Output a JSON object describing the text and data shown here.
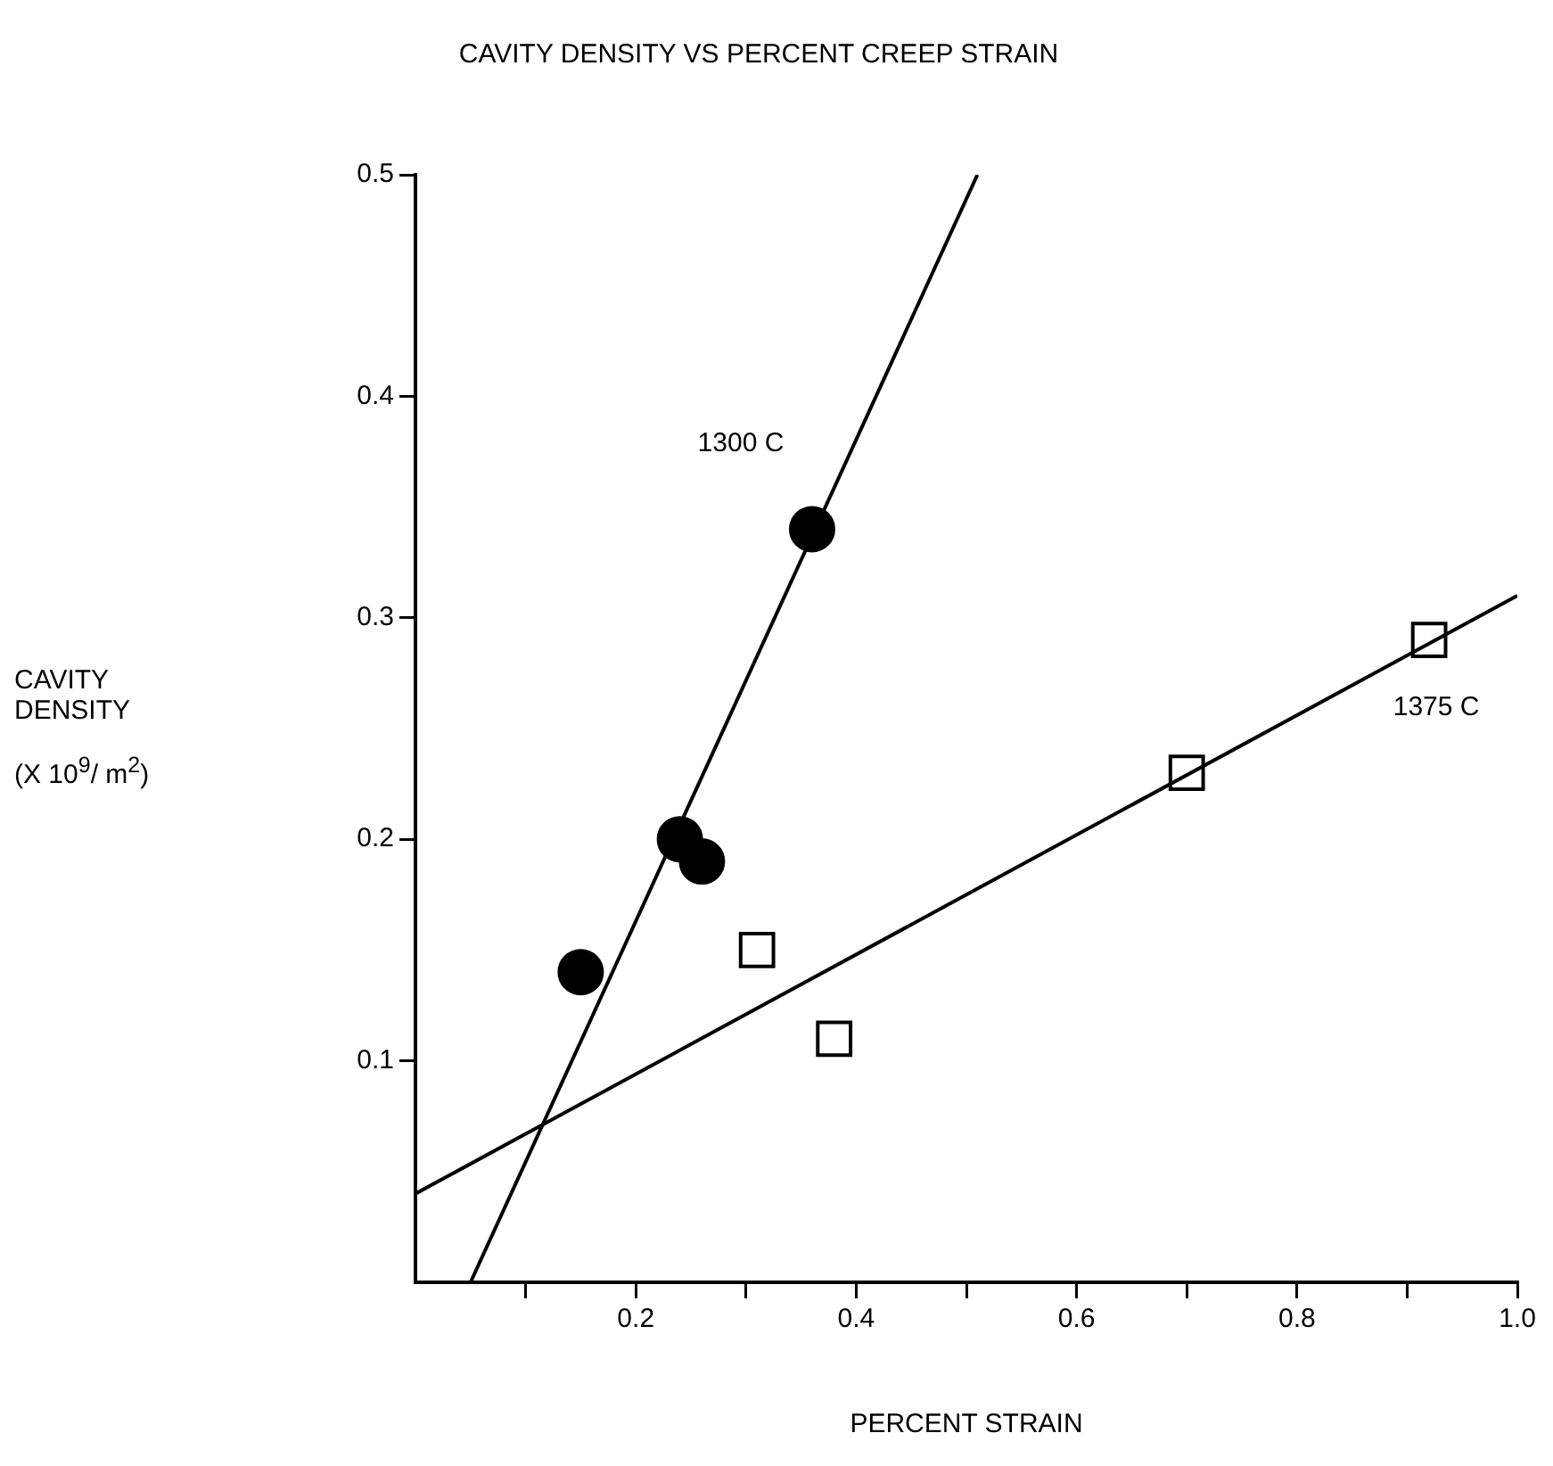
{
  "chart_data": {
    "type": "scatter",
    "title": "CAVITY DENSITY VS PERCENT CREEP STRAIN",
    "xlabel": "PERCENT STRAIN",
    "ylabel": "CAVITY\nDENSITY\n\n(X 10$^{9}$/ m$^{2}$)",
    "xlim": [
      0,
      1.0
    ],
    "ylim": [
      0,
      0.5
    ],
    "xticks": [
      {
        "value": 0.1,
        "label": null
      },
      0.2,
      {
        "value": 0.3,
        "label": null
      },
      0.4,
      {
        "value": 0.5,
        "label": null
      },
      0.6,
      {
        "value": 0.7,
        "label": null
      },
      0.8,
      {
        "value": 0.9,
        "label": null
      },
      {
        "value": 1.0,
        "label": "1.0"
      }
    ],
    "yticks": [
      0.1,
      0.2,
      0.3,
      0.4,
      0.5
    ],
    "series": [
      {
        "name": "1300 C",
        "marker": "circle",
        "color": "#000000",
        "x": [
          0.15,
          0.24,
          0.26,
          0.36
        ],
        "values": [
          0.14,
          0.2,
          0.19,
          0.34
        ]
      },
      {
        "type": "line",
        "marker": "none",
        "color": "#000000",
        "x": [
          0.05,
          0.51
        ],
        "values": [
          0,
          0.5
        ]
      },
      {
        "name": "1375 C",
        "marker": "square",
        "color": "#000000",
        "x": [
          0.31,
          0.38,
          0.7,
          0.92
        ],
        "values": [
          0.15,
          0.11,
          0.23,
          0.29
        ]
      },
      {
        "type": "line",
        "marker": "none",
        "color": "#000000",
        "x": [
          0,
          1.0
        ],
        "values": [
          0.04,
          0.31
        ]
      }
    ]
  }
}
